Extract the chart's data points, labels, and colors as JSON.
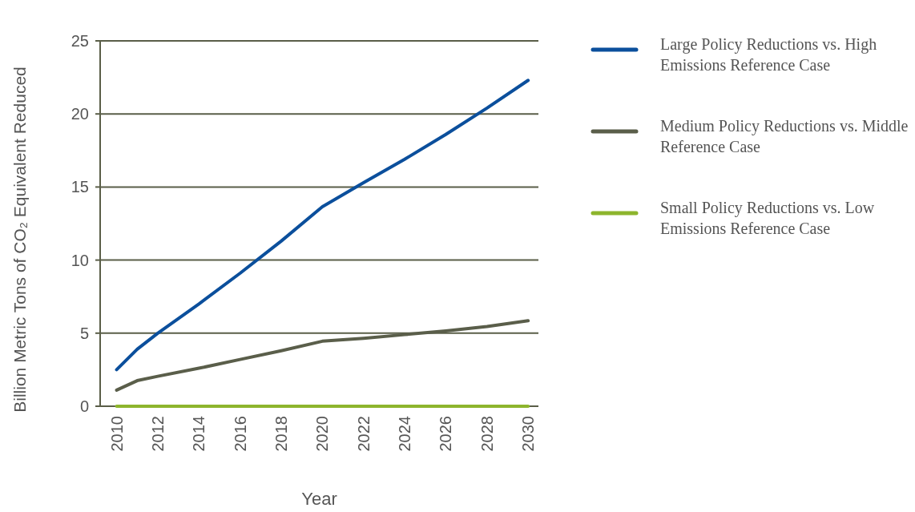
{
  "chart_data": {
    "type": "line",
    "xlabel": "Year",
    "ylabel": "Billion Metric Tons of CO₂ Equivalent Reduced",
    "x": [
      2010,
      2011,
      2012,
      2014,
      2016,
      2018,
      2020,
      2022,
      2024,
      2026,
      2028,
      2030
    ],
    "xlim": [
      2009.2,
      2030.5
    ],
    "xticks": [
      2010,
      2012,
      2014,
      2016,
      2018,
      2020,
      2022,
      2024,
      2026,
      2028,
      2030
    ],
    "ylim": [
      0,
      25
    ],
    "yticks": [
      0,
      5,
      10,
      15,
      20,
      25
    ],
    "grid": "y",
    "legend": "right",
    "marker": "none",
    "line_style": "solid",
    "series": [
      {
        "name": "Large Policy Reductions vs. High Emissions Reference Case",
        "color": "#0b4f9c",
        "values": [
          2.5,
          3.9,
          5.0,
          7.0,
          9.1,
          11.3,
          13.65,
          15.3,
          16.9,
          18.6,
          20.4,
          22.3
        ]
      },
      {
        "name": "Medium Policy Reductions vs. Middle Reference Case",
        "color": "#5a5e4a",
        "values": [
          1.1,
          1.75,
          2.05,
          2.6,
          3.2,
          3.8,
          4.45,
          4.65,
          4.9,
          5.15,
          5.45,
          5.85
        ]
      },
      {
        "name": "Small Policy Reductions vs. Low Emissions Reference Case",
        "color": "#8db52d",
        "values": [
          0,
          0,
          0,
          0,
          0,
          0,
          0,
          0,
          0,
          0,
          0,
          0
        ]
      }
    ]
  }
}
